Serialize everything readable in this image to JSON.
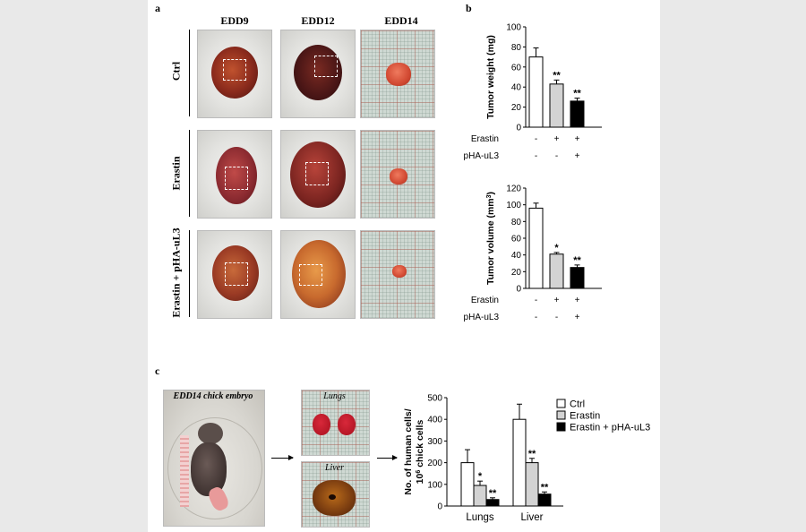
{
  "panel_labels": {
    "a": "a",
    "b": "b",
    "c": "c"
  },
  "panel_a": {
    "columns": [
      "EDD9",
      "EDD12",
      "EDD14"
    ],
    "rows": [
      "Ctrl",
      "Erastin",
      "Erastin + pHA-uL3"
    ]
  },
  "panel_c": {
    "embryo_label": "EDD14 chick embryo",
    "lungs_label": "Lungs",
    "liver_label": "Liver"
  },
  "colors": {
    "ctrl": "#ffffff",
    "erastin": "#d3d3d3",
    "combo": "#000000"
  },
  "chart_data": [
    {
      "type": "bar",
      "ylabel": "Tumor weight (mg)",
      "ylim": [
        0,
        100
      ],
      "yticks": [
        0,
        20,
        40,
        60,
        80,
        100
      ],
      "values": [
        70,
        43,
        26
      ],
      "errors": [
        9,
        4,
        3
      ],
      "fills": [
        "#ffffff",
        "#d3d3d3",
        "#000000"
      ],
      "significance": [
        "",
        "**",
        "**"
      ],
      "condition_rows": [
        {
          "label": "Erastin",
          "signs": [
            "-",
            "+",
            "+"
          ]
        },
        {
          "label": "pHA-uL3",
          "signs": [
            "-",
            "-",
            "+"
          ]
        }
      ]
    },
    {
      "type": "bar",
      "ylabel": "Tumor volume (mm3)",
      "ylim": [
        0,
        120
      ],
      "yticks": [
        0,
        20,
        40,
        60,
        80,
        100,
        120
      ],
      "values": [
        96,
        41,
        25
      ],
      "errors": [
        6,
        2,
        3
      ],
      "fills": [
        "#ffffff",
        "#d3d3d3",
        "#000000"
      ],
      "significance": [
        "",
        "*",
        "**"
      ],
      "condition_rows": [
        {
          "label": "Erastin",
          "signs": [
            "-",
            "+",
            "+"
          ]
        },
        {
          "label": "pHA-uL3",
          "signs": [
            "-",
            "-",
            "+"
          ]
        }
      ]
    },
    {
      "type": "bar",
      "ylabel_line1": "No. of human cells/",
      "ylabel_line2": "10",
      "ylabel_sup": "6",
      "ylabel_line2_rest": " chick cells",
      "ylim": [
        0,
        500
      ],
      "yticks": [
        0,
        100,
        200,
        300,
        400,
        500
      ],
      "categories": [
        "Lungs",
        "Liver"
      ],
      "series": [
        {
          "name": "Ctrl",
          "values": [
            200,
            400
          ],
          "errors": [
            60,
            70
          ],
          "significance": [
            "",
            ""
          ]
        },
        {
          "name": "Erastin",
          "values": [
            95,
            200
          ],
          "errors": [
            20,
            20
          ],
          "significance": [
            "*",
            "**"
          ]
        },
        {
          "name": "Erastin + pHA-uL3",
          "values": [
            30,
            55
          ],
          "errors": [
            8,
            10
          ],
          "significance": [
            "**",
            "**"
          ]
        }
      ]
    }
  ]
}
